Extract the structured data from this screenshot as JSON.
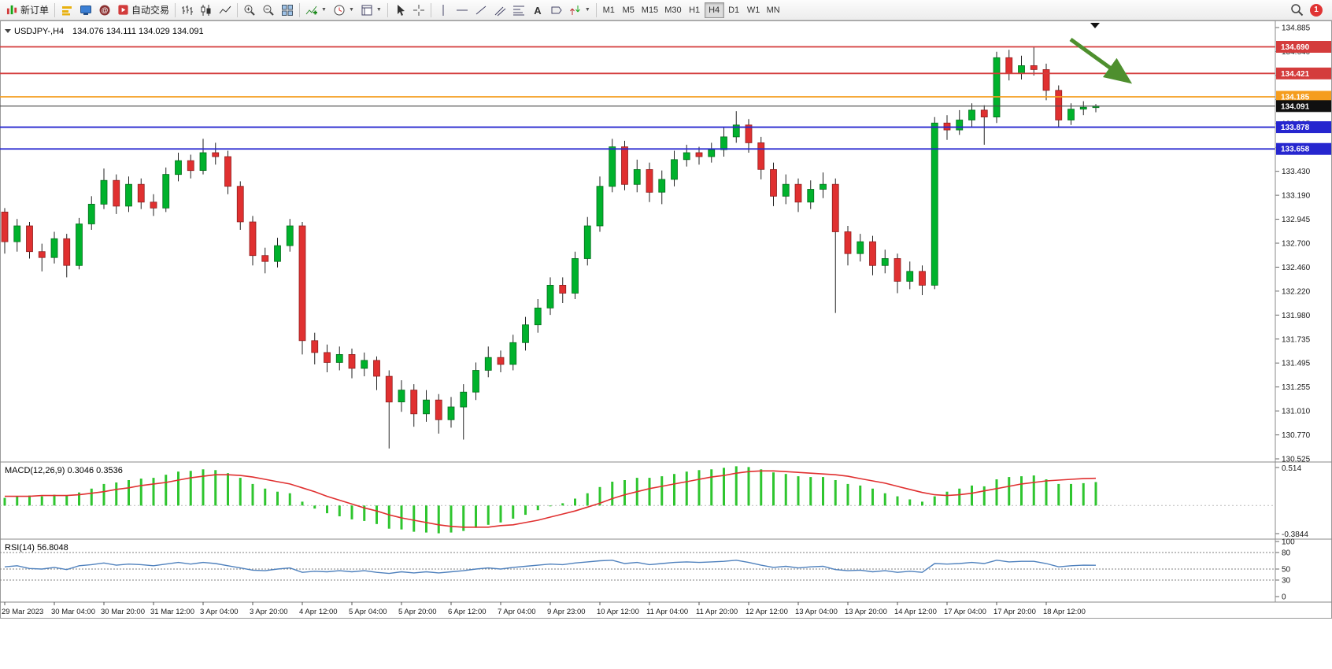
{
  "toolbar": {
    "new_order_label": "新订单",
    "autotrading_label": "自动交易",
    "timeframes": [
      "M1",
      "M5",
      "M15",
      "M30",
      "H1",
      "H4",
      "D1",
      "W1",
      "MN"
    ],
    "active_timeframe": "H4",
    "notification_badge": "1",
    "icons": [
      "new-order-icon",
      "market-depth-icon",
      "terminal-icon",
      "community-icon",
      "autotrading-icon",
      "bar-chart-icon",
      "candlestick-chart-icon",
      "line-chart-icon",
      "zoom-in-icon",
      "zoom-out-icon",
      "tile-windows-icon",
      "indicators-icon",
      "timeframes-menu-icon",
      "templates-icon",
      "cursor-icon",
      "crosshair-icon",
      "vertical-line-icon",
      "horizontal-line-icon",
      "trendline-icon",
      "equidistant-channel-icon",
      "fibonacci-icon",
      "text-icon",
      "text-label-icon",
      "arrows-icon",
      "search-icon"
    ]
  },
  "chart": {
    "symbol": "USDJPY-,H4",
    "ohlc_header": "134.076 134.111 134.029 134.091",
    "price_max": 134.885,
    "price_min": 130.525,
    "price_axis_labels": [
      "134.885",
      "134.640",
      "134.395",
      "134.150",
      "133.905",
      "133.660",
      "133.430",
      "133.190",
      "132.945",
      "132.700",
      "132.460",
      "132.220",
      "131.980",
      "131.735",
      "131.495",
      "131.255",
      "131.010",
      "130.770",
      "130.525"
    ],
    "horizontal_lines": [
      {
        "price": 134.69,
        "label": "134.690",
        "color": "#d43c3c"
      },
      {
        "price": 134.421,
        "label": "134.421",
        "color": "#d43c3c"
      },
      {
        "price": 134.185,
        "label": "134.185",
        "color": "#f59d1e"
      },
      {
        "price": 133.878,
        "label": "133.878",
        "color": "#2626cf"
      },
      {
        "price": 133.658,
        "label": "133.658",
        "color": "#2626cf"
      }
    ],
    "current_price": {
      "price": 134.091,
      "label": "134.091",
      "bg": "#101010"
    },
    "up_color": "#00b22c",
    "down_color": "#e03030",
    "time_axis_labels": [
      "29 Mar 2023",
      "30 Mar 04:00",
      "30 Mar 20:00",
      "31 Mar 12:00",
      "3 Apr 04:00",
      "3 Apr 20:00",
      "4 Apr 12:00",
      "5 Apr 04:00",
      "5 Apr 20:00",
      "6 Apr 12:00",
      "7 Apr 04:00",
      "9 Apr 23:00",
      "10 Apr 12:00",
      "11 Apr 04:00",
      "11 Apr 20:00",
      "12 Apr 12:00",
      "13 Apr 04:00",
      "13 Apr 20:00",
      "14 Apr 12:00",
      "17 Apr 04:00",
      "17 Apr 20:00",
      "18 Apr 12:00"
    ],
    "candles": [
      [
        133.02,
        133.06,
        132.6,
        132.72
      ],
      [
        132.72,
        132.95,
        132.62,
        132.88
      ],
      [
        132.88,
        132.92,
        132.55,
        132.62
      ],
      [
        132.62,
        132.7,
        132.42,
        132.56
      ],
      [
        132.56,
        132.82,
        132.5,
        132.75
      ],
      [
        132.75,
        132.8,
        132.36,
        132.48
      ],
      [
        132.48,
        132.96,
        132.44,
        132.9
      ],
      [
        132.9,
        133.18,
        132.84,
        133.1
      ],
      [
        133.1,
        133.46,
        133.05,
        133.34
      ],
      [
        133.34,
        133.4,
        133.0,
        133.08
      ],
      [
        133.08,
        133.38,
        133.02,
        133.3
      ],
      [
        133.3,
        133.36,
        133.05,
        133.12
      ],
      [
        133.12,
        133.2,
        132.98,
        133.06
      ],
      [
        133.06,
        133.47,
        133.02,
        133.4
      ],
      [
        133.4,
        133.62,
        133.33,
        133.54
      ],
      [
        133.54,
        133.6,
        133.36,
        133.44
      ],
      [
        133.44,
        133.76,
        133.4,
        133.62
      ],
      [
        133.62,
        133.72,
        133.5,
        133.58
      ],
      [
        133.58,
        133.64,
        133.2,
        133.28
      ],
      [
        133.28,
        133.33,
        132.84,
        132.92
      ],
      [
        132.92,
        132.98,
        132.48,
        132.58
      ],
      [
        132.58,
        132.66,
        132.4,
        132.52
      ],
      [
        132.52,
        132.76,
        132.46,
        132.68
      ],
      [
        132.68,
        132.95,
        132.62,
        132.88
      ],
      [
        132.88,
        132.92,
        131.58,
        131.72
      ],
      [
        131.72,
        131.8,
        131.48,
        131.6
      ],
      [
        131.6,
        131.68,
        131.4,
        131.5
      ],
      [
        131.5,
        131.66,
        131.42,
        131.58
      ],
      [
        131.58,
        131.64,
        131.34,
        131.44
      ],
      [
        131.44,
        131.6,
        131.36,
        131.52
      ],
      [
        131.52,
        131.56,
        131.22,
        131.36
      ],
      [
        131.36,
        131.42,
        130.63,
        131.1
      ],
      [
        131.1,
        131.32,
        131.0,
        131.22
      ],
      [
        131.22,
        131.28,
        130.85,
        130.98
      ],
      [
        130.98,
        131.22,
        130.9,
        131.12
      ],
      [
        131.12,
        131.18,
        130.78,
        130.92
      ],
      [
        130.92,
        131.15,
        130.84,
        131.05
      ],
      [
        131.05,
        131.28,
        130.72,
        131.2
      ],
      [
        131.2,
        131.5,
        131.12,
        131.42
      ],
      [
        131.42,
        131.66,
        131.35,
        131.55
      ],
      [
        131.55,
        131.62,
        131.4,
        131.48
      ],
      [
        131.48,
        131.78,
        131.42,
        131.7
      ],
      [
        131.7,
        131.96,
        131.62,
        131.88
      ],
      [
        131.88,
        132.14,
        131.8,
        132.05
      ],
      [
        132.05,
        132.36,
        131.98,
        132.28
      ],
      [
        132.28,
        132.36,
        132.1,
        132.2
      ],
      [
        132.2,
        132.62,
        132.14,
        132.55
      ],
      [
        132.55,
        132.97,
        132.48,
        132.88
      ],
      [
        132.88,
        133.38,
        132.82,
        133.28
      ],
      [
        133.28,
        133.76,
        133.22,
        133.68
      ],
      [
        133.68,
        133.74,
        133.24,
        133.3
      ],
      [
        133.3,
        133.55,
        133.22,
        133.45
      ],
      [
        133.45,
        133.52,
        133.12,
        133.22
      ],
      [
        133.22,
        133.44,
        133.1,
        133.35
      ],
      [
        133.35,
        133.64,
        133.28,
        133.55
      ],
      [
        133.55,
        133.7,
        133.48,
        133.62
      ],
      [
        133.62,
        133.68,
        133.5,
        133.58
      ],
      [
        133.58,
        133.72,
        133.52,
        133.65
      ],
      [
        133.65,
        133.88,
        133.58,
        133.78
      ],
      [
        133.78,
        134.04,
        133.72,
        133.9
      ],
      [
        133.9,
        133.96,
        133.62,
        133.72
      ],
      [
        133.72,
        133.78,
        133.35,
        133.45
      ],
      [
        133.45,
        133.52,
        133.08,
        133.18
      ],
      [
        133.18,
        133.4,
        133.1,
        133.3
      ],
      [
        133.3,
        133.36,
        133.02,
        133.12
      ],
      [
        133.12,
        133.34,
        133.05,
        133.25
      ],
      [
        133.25,
        133.42,
        133.16,
        133.3
      ],
      [
        133.3,
        133.36,
        132.0,
        132.82
      ],
      [
        132.82,
        132.88,
        132.48,
        132.6
      ],
      [
        132.6,
        132.8,
        132.52,
        132.72
      ],
      [
        132.72,
        132.78,
        132.38,
        132.48
      ],
      [
        132.48,
        132.64,
        132.4,
        132.55
      ],
      [
        132.55,
        132.6,
        132.2,
        132.32
      ],
      [
        132.32,
        132.52,
        132.24,
        132.42
      ],
      [
        132.42,
        132.48,
        132.18,
        132.28
      ],
      [
        132.28,
        133.98,
        132.24,
        133.92
      ],
      [
        133.92,
        134.0,
        133.75,
        133.85
      ],
      [
        133.85,
        134.05,
        133.8,
        133.95
      ],
      [
        133.95,
        134.12,
        133.88,
        134.05
      ],
      [
        134.05,
        134.1,
        133.7,
        133.98
      ],
      [
        133.98,
        134.64,
        133.92,
        134.58
      ],
      [
        134.58,
        134.66,
        134.35,
        134.42
      ],
      [
        134.42,
        134.6,
        134.36,
        134.5
      ],
      [
        134.5,
        134.69,
        134.4,
        134.46
      ],
      [
        134.46,
        134.52,
        134.15,
        134.25
      ],
      [
        134.25,
        134.3,
        133.88,
        133.95
      ],
      [
        133.95,
        134.12,
        133.9,
        134.06
      ],
      [
        134.06,
        134.14,
        134.0,
        134.08
      ],
      [
        134.076,
        134.111,
        134.029,
        134.091
      ]
    ]
  },
  "macd": {
    "label": "MACD(12,26,9) 0.3046 0.3536",
    "scale_top": "0.514",
    "scale_bottom": "-0.3844",
    "max": 0.514,
    "min": -0.3844,
    "hist_color": "#2fc52f",
    "signal_color": "#e03030",
    "histogram": [
      0.1,
      0.12,
      0.13,
      0.12,
      0.14,
      0.13,
      0.17,
      0.22,
      0.28,
      0.3,
      0.33,
      0.35,
      0.36,
      0.4,
      0.44,
      0.45,
      0.47,
      0.46,
      0.42,
      0.36,
      0.28,
      0.22,
      0.18,
      0.16,
      0.05,
      -0.04,
      -0.1,
      -0.14,
      -0.18,
      -0.2,
      -0.24,
      -0.3,
      -0.31,
      -0.34,
      -0.35,
      -0.36,
      -0.35,
      -0.33,
      -0.29,
      -0.25,
      -0.22,
      -0.17,
      -0.12,
      -0.06,
      0.0,
      0.03,
      0.09,
      0.16,
      0.24,
      0.31,
      0.33,
      0.36,
      0.36,
      0.38,
      0.41,
      0.44,
      0.46,
      0.47,
      0.49,
      0.51,
      0.5,
      0.47,
      0.43,
      0.41,
      0.38,
      0.37,
      0.37,
      0.33,
      0.28,
      0.26,
      0.22,
      0.16,
      0.12,
      0.08,
      0.05,
      0.12,
      0.18,
      0.22,
      0.26,
      0.25,
      0.34,
      0.37,
      0.38,
      0.39,
      0.34,
      0.28,
      0.28,
      0.29,
      0.3046
    ],
    "signal": [
      0.12,
      0.12,
      0.12,
      0.13,
      0.13,
      0.13,
      0.14,
      0.16,
      0.18,
      0.21,
      0.23,
      0.26,
      0.28,
      0.3,
      0.33,
      0.36,
      0.38,
      0.4,
      0.4,
      0.39,
      0.37,
      0.34,
      0.31,
      0.28,
      0.23,
      0.18,
      0.12,
      0.07,
      0.02,
      -0.03,
      -0.07,
      -0.12,
      -0.16,
      -0.19,
      -0.22,
      -0.25,
      -0.27,
      -0.28,
      -0.28,
      -0.28,
      -0.26,
      -0.25,
      -0.22,
      -0.19,
      -0.15,
      -0.11,
      -0.07,
      -0.02,
      0.03,
      0.09,
      0.14,
      0.18,
      0.22,
      0.25,
      0.28,
      0.31,
      0.34,
      0.37,
      0.39,
      0.42,
      0.44,
      0.45,
      0.45,
      0.44,
      0.43,
      0.42,
      0.41,
      0.4,
      0.38,
      0.35,
      0.32,
      0.29,
      0.25,
      0.21,
      0.17,
      0.14,
      0.13,
      0.14,
      0.16,
      0.19,
      0.22,
      0.25,
      0.28,
      0.3,
      0.32,
      0.33,
      0.34,
      0.35,
      0.3536
    ]
  },
  "rsi": {
    "label": "RSI(14) 56.8048",
    "scale_labels": [
      "100",
      "80",
      "50",
      "30",
      "0"
    ],
    "levels": [
      80,
      50,
      30
    ],
    "line_color": "#4f81bd",
    "values": [
      54,
      56,
      51,
      50,
      53,
      49,
      56,
      58,
      61,
      57,
      59,
      58,
      56,
      59,
      62,
      59,
      62,
      60,
      56,
      52,
      48,
      47,
      50,
      52,
      44,
      46,
      45,
      47,
      45,
      47,
      44,
      42,
      45,
      43,
      45,
      43,
      45,
      47,
      50,
      52,
      50,
      53,
      55,
      57,
      59,
      58,
      61,
      63,
      65,
      66,
      60,
      62,
      58,
      60,
      62,
      63,
      62,
      63,
      64,
      66,
      62,
      57,
      53,
      55,
      52,
      54,
      55,
      49,
      47,
      48,
      45,
      47,
      44,
      46,
      44,
      60,
      59,
      60,
      62,
      60,
      66,
      63,
      64,
      64,
      60,
      54,
      56,
      57,
      56.8
    ]
  },
  "annotation": {
    "arrow_color": "#4e8f2e"
  }
}
